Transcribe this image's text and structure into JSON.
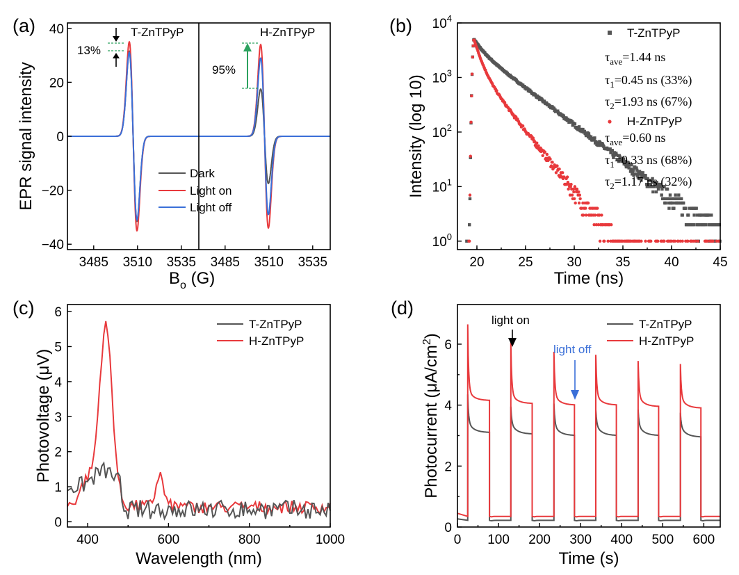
{
  "chart_data": [
    {
      "panel": "(a)",
      "type": "line",
      "ylabel": "EPR signal intensity",
      "xlabel": "B",
      "xlabel_sub": "o",
      "xlabel_unit": " (G)",
      "ylim": [
        -42,
        42
      ],
      "xlim": [
        3470,
        3545
      ],
      "yticks": [
        -40,
        -20,
        0,
        20,
        40
      ],
      "yticklabels": [
        "−40",
        "−20",
        "0",
        "20",
        "40"
      ],
      "xticks": [
        3485,
        3510,
        3535
      ],
      "xticklabels": [
        "3485",
        "3510",
        "3535"
      ],
      "subpanels": [
        {
          "label": "T-ZnTPyP",
          "center": 3507.5,
          "amp": {
            "Dark": 31.5,
            "Light on": 35,
            "Light off": 31
          }
        },
        {
          "label": "H-ZnTPyP",
          "center": 3507.5,
          "amp": {
            "Dark": 17.5,
            "Light on": 34,
            "Light off": 29
          }
        }
      ],
      "series": [
        {
          "name": "Dark",
          "color": "#555555"
        },
        {
          "name": "Light on",
          "color": "#e8393c"
        },
        {
          "name": "Light off",
          "color": "#3a6fd8"
        }
      ],
      "annotations": [
        {
          "text": "13%",
          "color": "#000000"
        },
        {
          "text": "95%",
          "color": "#2ca25f"
        }
      ]
    },
    {
      "panel": "(b)",
      "type": "scatter",
      "xlabel": "Time (ns)",
      "ylabel": "Intensity (log 10)",
      "yscale": "log",
      "ylim": [
        0.7,
        10000
      ],
      "xlim": [
        18,
        45
      ],
      "xticks": [
        20,
        25,
        30,
        35,
        40,
        45
      ],
      "xticklabels": [
        "20",
        "25",
        "30",
        "35",
        "40",
        "45"
      ],
      "yticks": [
        1,
        10,
        100,
        1000,
        10000
      ],
      "ytick_base": "10",
      "ytick_exp": [
        "0",
        "1",
        "2",
        "3",
        "4"
      ],
      "series": [
        {
          "name": "T-ZnTPyP",
          "color": "#555555",
          "peak_time": 19.7,
          "peak": 5000,
          "tau_ave": "1.44 ns",
          "tau1": "0.45 ns (33%)",
          "tau2": "1.93 ns (67%)"
        },
        {
          "name": "H-ZnTPyP",
          "color": "#e8393c",
          "peak_time": 19.7,
          "peak": 5000,
          "tau_ave": "0.60 ns",
          "tau1": "0.33 ns (68%)",
          "tau2": "1.17 ns (32%)"
        }
      ]
    },
    {
      "panel": "(c)",
      "type": "line",
      "xlabel": "Wavelength (nm)",
      "ylabel": "Photovoltage (μV)",
      "xlim": [
        350,
        1000
      ],
      "ylim": [
        -0.15,
        6.2
      ],
      "xticks": [
        400,
        600,
        800,
        1000
      ],
      "xticklabels": [
        "400",
        "600",
        "800",
        "1000"
      ],
      "yticks": [
        0,
        1,
        2,
        3,
        4,
        5,
        6
      ],
      "yticklabels": [
        "0",
        "1",
        "2",
        "3",
        "4",
        "5",
        "6"
      ],
      "series": [
        {
          "name": "T-ZnTPyP",
          "color": "#555555"
        },
        {
          "name": "H-ZnTPyP",
          "color": "#e8393c"
        }
      ],
      "peaks": {
        "H-ZnTPyP": [
          [
            445,
            5.6
          ],
          [
            578,
            1.35
          ]
        ],
        "T-ZnTPyP": [
          [
            440,
            1.5
          ]
        ]
      }
    },
    {
      "panel": "(d)",
      "type": "line",
      "xlabel": "Time (s)",
      "ylabel": "Photocurrent (μA/cm",
      "ylabel_sup": "2",
      "ylabel_end": ")",
      "xlim": [
        0,
        640
      ],
      "ylim": [
        0,
        7.3
      ],
      "xticks": [
        0,
        100,
        200,
        300,
        400,
        500,
        600
      ],
      "xticklabels": [
        "0",
        "100",
        "200",
        "300",
        "400",
        "500",
        "600"
      ],
      "yticks": [
        0,
        2,
        4,
        6
      ],
      "yticklabels": [
        "0",
        "2",
        "4",
        "6"
      ],
      "cycles_on": [
        [
          25,
          78
        ],
        [
          130,
          182
        ],
        [
          235,
          285
        ],
        [
          337,
          387
        ],
        [
          440,
          490
        ],
        [
          543,
          593
        ]
      ],
      "series": [
        {
          "name": "T-ZnTPyP",
          "color": "#555555",
          "dark": 0.22,
          "spike": 4.0,
          "plateau": 3.1
        },
        {
          "name": "H-ZnTPyP",
          "color": "#e8393c",
          "dark": 0.35,
          "spike": 6.3,
          "plateau": 4.1
        }
      ],
      "annotations": [
        {
          "text": "light on",
          "color": "#000000"
        },
        {
          "text": "light off",
          "color": "#3a6fd8"
        }
      ]
    }
  ]
}
